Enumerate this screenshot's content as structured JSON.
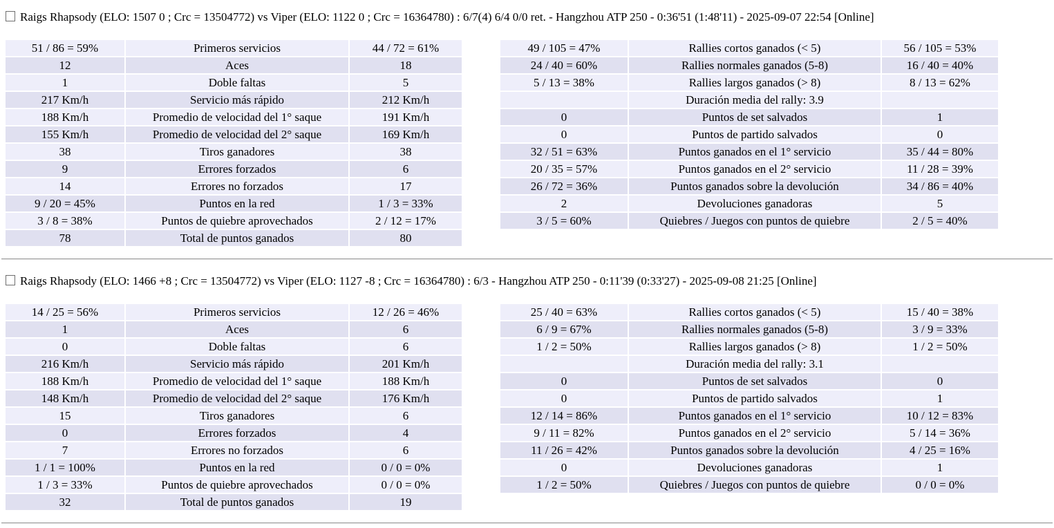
{
  "colors": {
    "row_light": "#eeeefa",
    "row_dark": "#e0e0f0"
  },
  "matches": [
    {
      "title": "Raigs Rhapsody (ELO: 1507 0 ; Crc = 13504772) vs Viper (ELO: 1122 0 ; Crc = 16364780) : 6/7(4) 6/4 0/0 ret. - Hangzhou ATP 250 - 0:36'51 (1:48'11) - 2025-09-07 22:54 [Online]",
      "serve_table": {
        "rows": [
          {
            "p1": "51 / 86 = 59%",
            "label": "Primeros servicios",
            "p2": "44 / 72 = 61%"
          },
          {
            "p1": "12",
            "label": "Aces",
            "p2": "18"
          },
          {
            "p1": "1",
            "label": "Doble faltas",
            "p2": "5"
          },
          {
            "p1": "217 Km/h",
            "label": "Servicio más rápido",
            "p2": "212 Km/h"
          },
          {
            "p1": "188 Km/h",
            "label": "Promedio de velocidad del 1° saque",
            "p2": "191 Km/h"
          },
          {
            "p1": "155 Km/h",
            "label": "Promedio de velocidad del 2° saque",
            "p2": "169 Km/h"
          },
          {
            "p1": "38",
            "label": "Tiros ganadores",
            "p2": "38"
          },
          {
            "p1": "9",
            "label": "Errores forzados",
            "p2": "6"
          },
          {
            "p1": "14",
            "label": "Errores no forzados",
            "p2": "17"
          },
          {
            "p1": "9 / 20 = 45%",
            "label": "Puntos en la red",
            "p2": "1 / 3 = 33%"
          },
          {
            "p1": "3 / 8 = 38%",
            "label": "Puntos de quiebre aprovechados",
            "p2": "2 / 12 = 17%"
          },
          {
            "p1": "78",
            "label": "Total de puntos ganados",
            "p2": "80"
          }
        ]
      },
      "rally_table": {
        "rows": [
          {
            "p1": "49 / 105 = 47%",
            "label": "Rallies cortos ganados (< 5)",
            "p2": "56 / 105 = 53%"
          },
          {
            "p1": "24 / 40 = 60%",
            "label": "Rallies normales ganados (5-8)",
            "p2": "16 / 40 = 40%"
          },
          {
            "p1": "5 / 13 = 38%",
            "label": "Rallies largos ganados (> 8)",
            "p2": "8 / 13 = 62%"
          },
          {
            "p1": "",
            "label": "Duración media del rally: 3.9",
            "p2": ""
          },
          {
            "p1": "0",
            "label": "Puntos de set salvados",
            "p2": "1"
          },
          {
            "p1": "0",
            "label": "Puntos de partido salvados",
            "p2": "0"
          },
          {
            "p1": "32 / 51 = 63%",
            "label": "Puntos ganados en el 1° servicio",
            "p2": "35 / 44 = 80%"
          },
          {
            "p1": "20 / 35 = 57%",
            "label": "Puntos ganados en el 2° servicio",
            "p2": "11 / 28 = 39%"
          },
          {
            "p1": "26 / 72 = 36%",
            "label": "Puntos ganados sobre la devolución",
            "p2": "34 / 86 = 40%"
          },
          {
            "p1": "2",
            "label": "Devoluciones ganadoras",
            "p2": "5"
          },
          {
            "p1": "3 / 5 = 60%",
            "label": "Quiebres / Juegos con puntos de quiebre",
            "p2": "2 / 5 = 40%"
          }
        ]
      }
    },
    {
      "title": "Raigs Rhapsody (ELO: 1466 +8 ; Crc = 13504772) vs Viper (ELO: 1127 -8 ; Crc = 16364780) : 6/3 - Hangzhou ATP 250 - 0:11'39 (0:33'27) - 2025-09-08 21:25 [Online]",
      "serve_table": {
        "rows": [
          {
            "p1": "14 / 25 = 56%",
            "label": "Primeros servicios",
            "p2": "12 / 26 = 46%"
          },
          {
            "p1": "1",
            "label": "Aces",
            "p2": "6"
          },
          {
            "p1": "0",
            "label": "Doble faltas",
            "p2": "6"
          },
          {
            "p1": "216 Km/h",
            "label": "Servicio más rápido",
            "p2": "201 Km/h"
          },
          {
            "p1": "188 Km/h",
            "label": "Promedio de velocidad del 1° saque",
            "p2": "188 Km/h"
          },
          {
            "p1": "148 Km/h",
            "label": "Promedio de velocidad del 2° saque",
            "p2": "176 Km/h"
          },
          {
            "p1": "15",
            "label": "Tiros ganadores",
            "p2": "6"
          },
          {
            "p1": "0",
            "label": "Errores forzados",
            "p2": "4"
          },
          {
            "p1": "7",
            "label": "Errores no forzados",
            "p2": "6"
          },
          {
            "p1": "1 / 1 = 100%",
            "label": "Puntos en la red",
            "p2": "0 / 0 = 0%"
          },
          {
            "p1": "1 / 3 = 33%",
            "label": "Puntos de quiebre aprovechados",
            "p2": "0 / 0 = 0%"
          },
          {
            "p1": "32",
            "label": "Total de puntos ganados",
            "p2": "19"
          }
        ]
      },
      "rally_table": {
        "rows": [
          {
            "p1": "25 / 40 = 63%",
            "label": "Rallies cortos ganados (< 5)",
            "p2": "15 / 40 = 38%"
          },
          {
            "p1": "6 / 9 = 67%",
            "label": "Rallies normales ganados (5-8)",
            "p2": "3 / 9 = 33%"
          },
          {
            "p1": "1 / 2 = 50%",
            "label": "Rallies largos ganados (> 8)",
            "p2": "1 / 2 = 50%"
          },
          {
            "p1": "",
            "label": "Duración media del rally: 3.1",
            "p2": ""
          },
          {
            "p1": "0",
            "label": "Puntos de set salvados",
            "p2": "0"
          },
          {
            "p1": "0",
            "label": "Puntos de partido salvados",
            "p2": "1"
          },
          {
            "p1": "12 / 14 = 86%",
            "label": "Puntos ganados en el 1° servicio",
            "p2": "10 / 12 = 83%"
          },
          {
            "p1": "9 / 11 = 82%",
            "label": "Puntos ganados en el 2° servicio",
            "p2": "5 / 14 = 36%"
          },
          {
            "p1": "11 / 26 = 42%",
            "label": "Puntos ganados sobre la devolución",
            "p2": "4 / 25 = 16%"
          },
          {
            "p1": "0",
            "label": "Devoluciones ganadoras",
            "p2": "1"
          },
          {
            "p1": "1 / 2 = 50%",
            "label": "Quiebres / Juegos con puntos de quiebre",
            "p2": "0 / 0 = 0%"
          }
        ]
      }
    }
  ]
}
